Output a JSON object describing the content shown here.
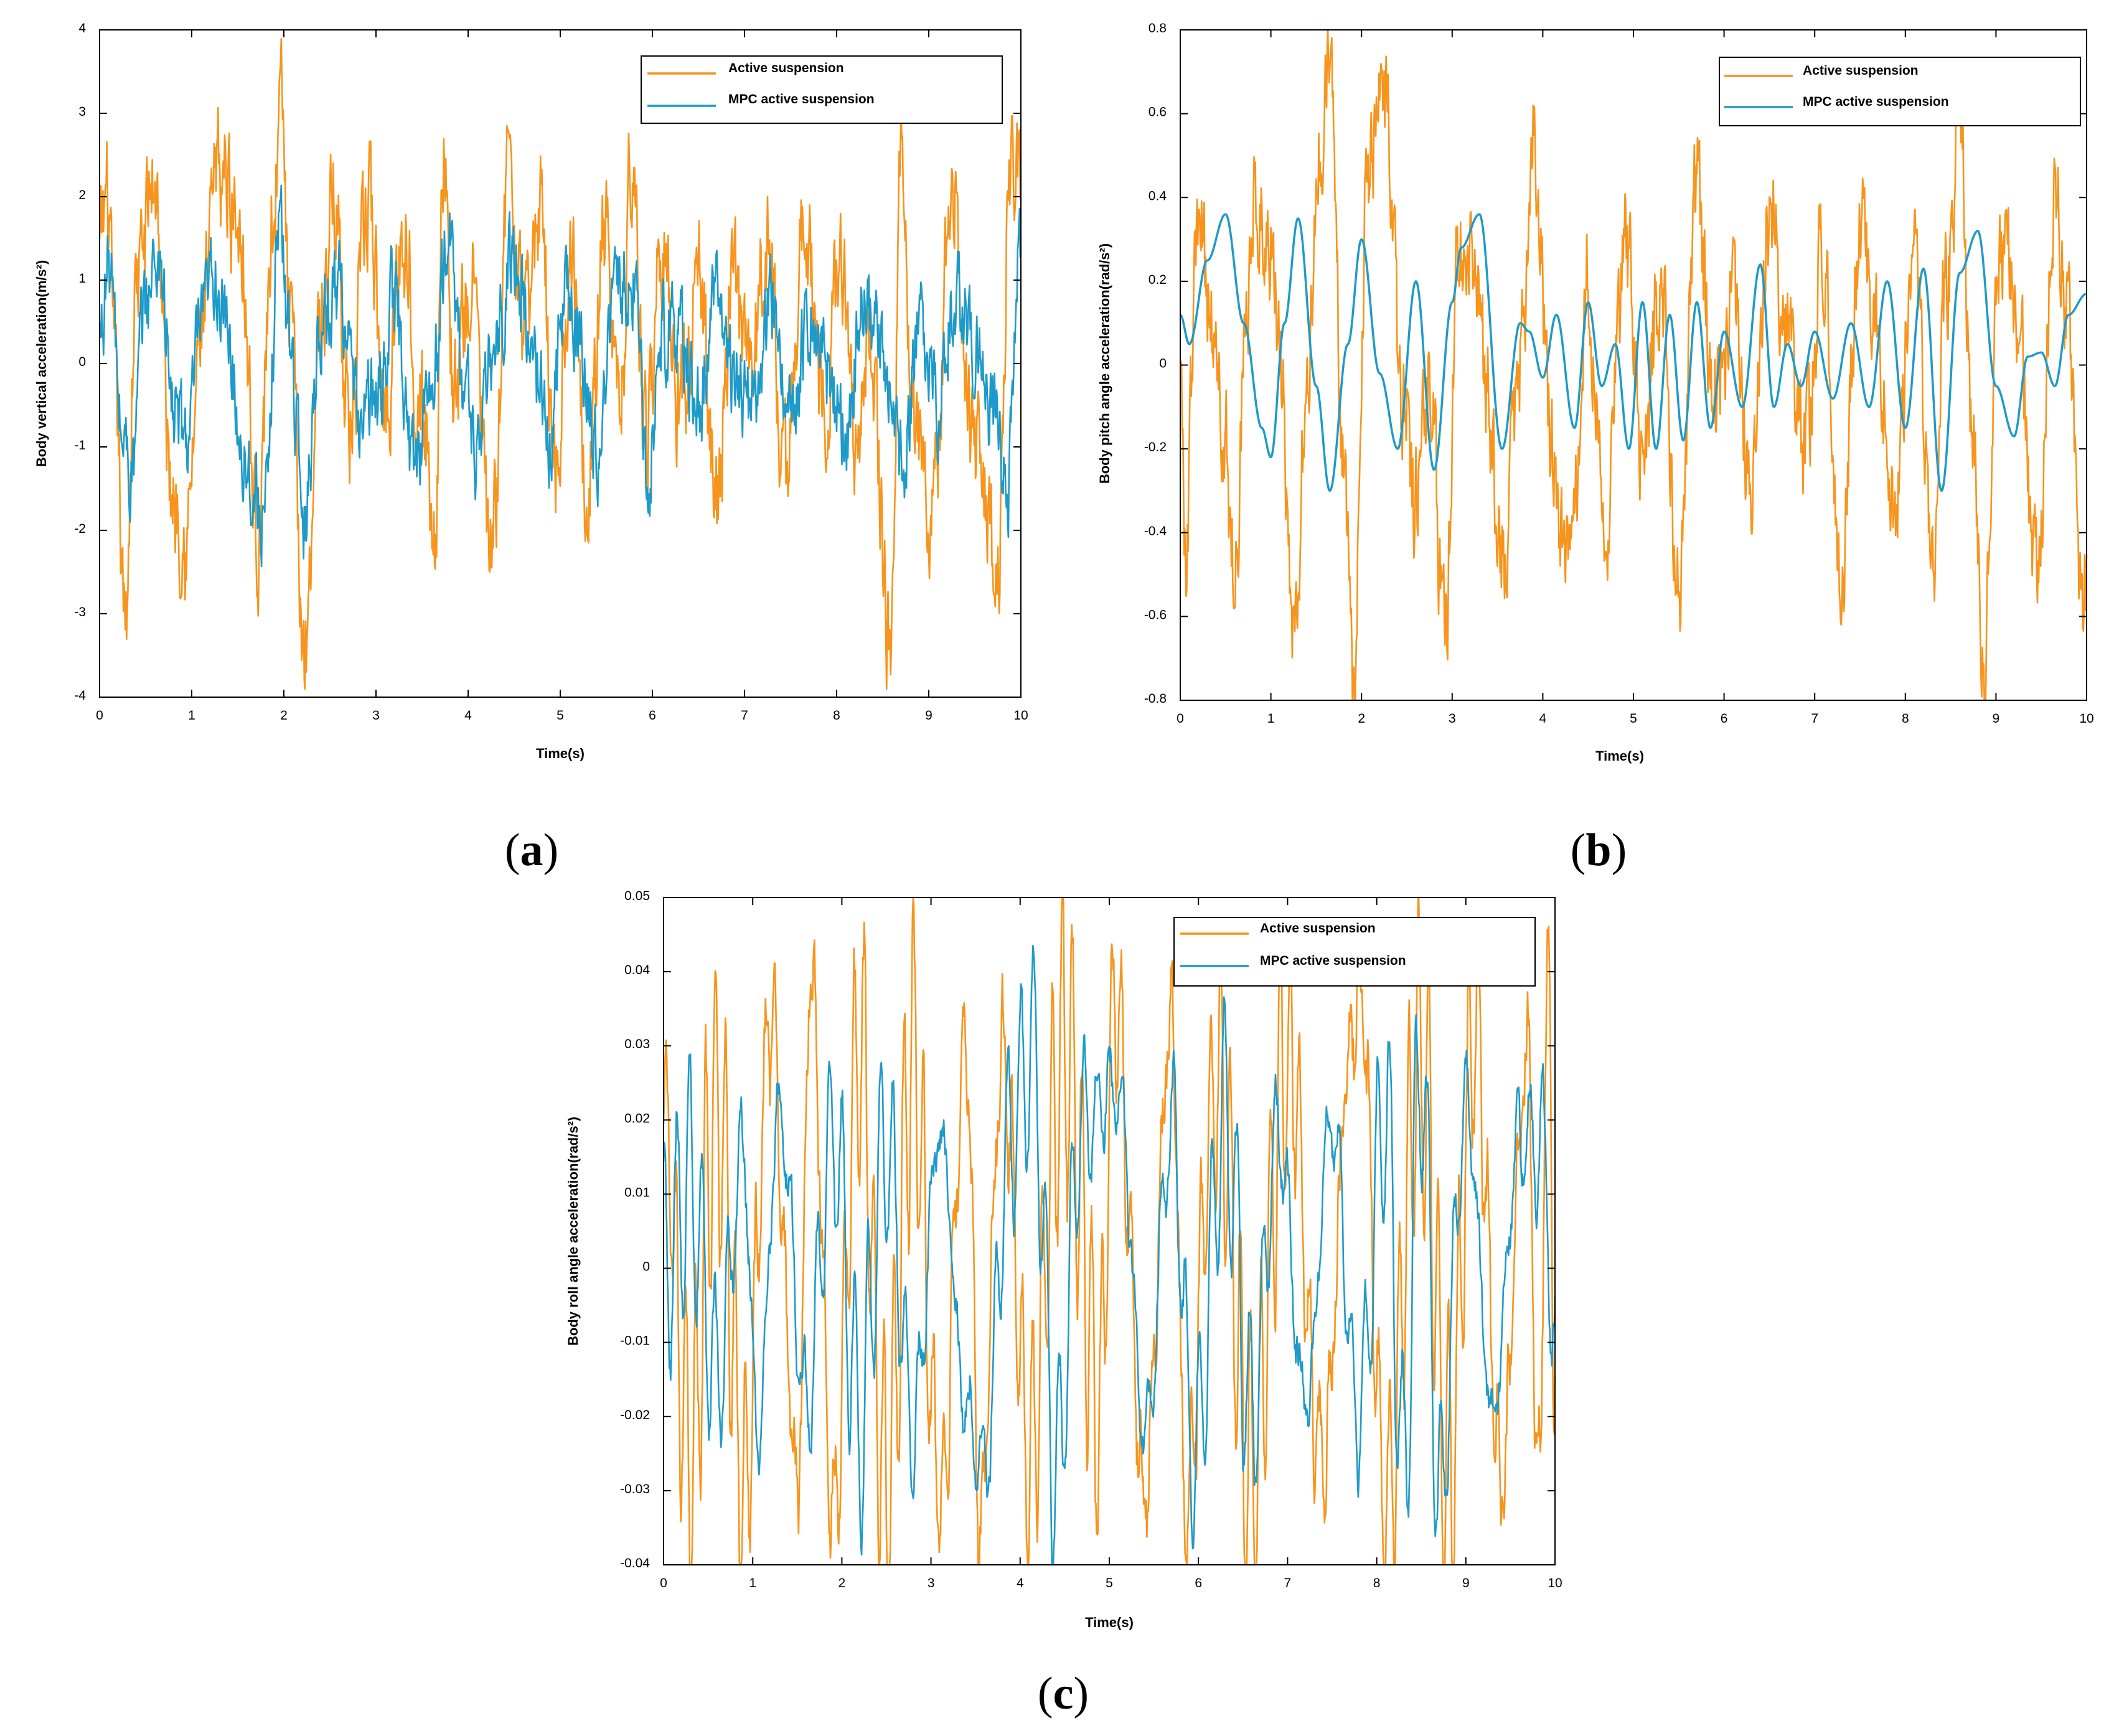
{
  "colors": {
    "active": "#F7941D",
    "mpc": "#1E9AC8",
    "axis": "#000000"
  },
  "chart_data": [
    {
      "type": "line",
      "id": "a",
      "caption_letter": "a",
      "caption_open": "(",
      "caption_close": ")",
      "xlabel": "Time(s)",
      "ylabel": "Body vertical acceleration(m/s²)",
      "xlim": [
        0,
        10
      ],
      "ylim": [
        -4,
        4
      ],
      "xticks": [
        0,
        1,
        2,
        3,
        4,
        5,
        6,
        7,
        8,
        9,
        10
      ],
      "yticks": [
        4,
        3,
        2,
        1,
        0,
        -1,
        -2,
        -3,
        -4
      ],
      "ytick_labels": [
        "4",
        "3",
        "2",
        "1",
        "0",
        "-1",
        "-2",
        "-3",
        "-4"
      ],
      "legend": [
        "Active suspension",
        "MPC active suspension"
      ],
      "legend_position": "top-right",
      "series": [
        {
          "name": "Active suspension",
          "x": [
            0,
            0.08,
            0.18,
            0.27,
            0.4,
            0.6,
            0.78,
            0.95,
            1.1,
            1.3,
            1.52,
            1.72,
            1.88,
            1.97,
            2.07,
            2.22,
            2.4,
            2.55,
            2.72,
            2.92,
            3.1,
            3.3,
            3.5,
            3.65,
            3.72,
            3.85,
            4.05,
            4.25,
            4.45,
            4.6,
            4.78,
            4.95,
            5.12,
            5.3,
            5.48,
            5.65,
            5.78,
            5.93,
            6.1,
            6.3,
            6.5,
            6.7,
            6.88,
            7.05,
            7.25,
            7.45,
            7.65,
            7.85,
            8.05,
            8.22,
            8.35,
            8.58,
            8.7,
            8.82,
            9.05,
            9.25,
            9.45,
            9.63,
            9.75,
            9.88,
            10
          ],
          "y": [
            1.3,
            2.0,
            -0.5,
            -3.2,
            1.0,
            2.2,
            -1.5,
            -2.0,
            0.4,
            2.3,
            1.8,
            -2.1,
            1.8,
            3.1,
            0.4,
            -3.4,
            0.5,
            2.0,
            -0.8,
            1.9,
            -0.6,
            1.6,
            -0.6,
            -2.0,
            2.7,
            -0.3,
            1.0,
            -2.4,
            2.4,
            0.3,
            1.9,
            -1.2,
            1.4,
            -1.3,
            1.5,
            -0.7,
            2.6,
            -1.0,
            1.5,
            -0.5,
            1.0,
            -1.6,
            1.0,
            -0.2,
            1.5,
            -1.5,
            1.9,
            -0.5,
            1.2,
            -0.8,
            0.3,
            -3.3,
            2.6,
            -0.8,
            -1.8,
            2.2,
            -0.6,
            -1.8,
            -2.7,
            2.3,
            2.0
          ],
          "noise_amplitude": 0.6
        },
        {
          "name": "MPC active suspension",
          "x": [
            0,
            0.1,
            0.25,
            0.35,
            0.5,
            0.65,
            0.8,
            0.95,
            1.1,
            1.25,
            1.4,
            1.55,
            1.7,
            1.8,
            1.95,
            2.05,
            2.22,
            2.4,
            2.6,
            2.8,
            3.0,
            3.2,
            3.4,
            3.6,
            3.8,
            3.95,
            4.1,
            4.3,
            4.5,
            4.7,
            4.9,
            5.05,
            5.2,
            5.4,
            5.6,
            5.8,
            5.95,
            6.1,
            6.3,
            6.5,
            6.7,
            6.9,
            7.1,
            7.3,
            7.5,
            7.7,
            7.9,
            8.1,
            8.3,
            8.5,
            8.7,
            8.9,
            9.1,
            9.3,
            9.5,
            9.7,
            9.85,
            10
          ],
          "y": [
            0.3,
            1.2,
            -0.9,
            -1.3,
            0.8,
            1.3,
            -0.6,
            -0.9,
            0.4,
            1.1,
            0.2,
            -1.0,
            -1.6,
            -1.9,
            1.8,
            0.5,
            -1.8,
            0.5,
            1.0,
            -0.6,
            -0.5,
            0.8,
            -1.2,
            -0.3,
            1.5,
            -0.2,
            -1.0,
            0.2,
            1.3,
            0.1,
            -0.9,
            1.1,
            0.2,
            -1.0,
            0.9,
            1.0,
            -1.4,
            0.5,
            0.3,
            -0.6,
            0.8,
            -0.2,
            -0.5,
            0.8,
            -0.6,
            0.6,
            -0.1,
            -0.8,
            0.6,
            0.2,
            -1.3,
            0.4,
            -0.5,
            0.9,
            0.2,
            -0.7,
            -1.5,
            1.5
          ],
          "noise_amplitude": 0.45
        }
      ]
    },
    {
      "type": "line",
      "id": "b",
      "caption_letter": "b",
      "caption_open": "(",
      "caption_close": ")",
      "xlabel": "Time(s)",
      "ylabel": "Body pitch angle acceleration(rad/s²)",
      "xlim": [
        0,
        10
      ],
      "ylim": [
        -0.8,
        0.8
      ],
      "xticks": [
        0,
        1,
        2,
        3,
        4,
        5,
        6,
        7,
        8,
        9,
        10
      ],
      "yticks": [
        0.8,
        0.6,
        0.4,
        0.2,
        0,
        -0.2,
        -0.4,
        -0.6,
        -0.8
      ],
      "ytick_labels": [
        "0.8",
        "0.6",
        "0.4",
        "0.2",
        "0",
        "-0.2",
        "-0.4",
        "-0.6",
        "-0.8"
      ],
      "legend": [
        "Active suspension",
        "MPC active suspension"
      ],
      "legend_position": "top-right",
      "series": [
        {
          "name": "Active suspension",
          "x": [
            0,
            0.05,
            0.2,
            0.35,
            0.5,
            0.6,
            0.72,
            0.85,
            1.0,
            1.1,
            1.25,
            1.4,
            1.52,
            1.65,
            1.8,
            1.92,
            2.05,
            2.25,
            2.45,
            2.6,
            2.75,
            2.92,
            3.05,
            3.2,
            3.38,
            3.55,
            3.75,
            3.9,
            4.1,
            4.3,
            4.5,
            4.7,
            4.9,
            5.1,
            5.3,
            5.5,
            5.7,
            5.9,
            6.1,
            6.3,
            6.5,
            6.7,
            6.9,
            7.1,
            7.3,
            7.5,
            7.7,
            7.9,
            8.1,
            8.3,
            8.45,
            8.6,
            8.75,
            8.88,
            9.05,
            9.25,
            9.45,
            9.65,
            9.8,
            9.95,
            10
          ],
          "y": [
            0.1,
            -0.45,
            0.32,
            0.1,
            -0.2,
            -0.5,
            0.1,
            0.4,
            0.3,
            0.0,
            -0.66,
            -0.1,
            0.5,
            0.7,
            -0.2,
            -0.72,
            0.4,
            0.65,
            -0.1,
            -0.3,
            0.0,
            -0.68,
            0.2,
            0.35,
            -0.05,
            -0.45,
            0.0,
            0.55,
            -0.2,
            -0.5,
            0.2,
            -0.35,
            0.3,
            -0.2,
            0.2,
            -0.55,
            0.4,
            -0.1,
            0.2,
            -0.3,
            0.4,
            0.05,
            -0.2,
            0.3,
            -0.5,
            0.3,
            0.05,
            -0.3,
            0.3,
            -0.5,
            0.2,
            0.55,
            -0.2,
            -0.68,
            0.35,
            0.1,
            -0.55,
            0.45,
            0.1,
            -0.6,
            -0.5
          ],
          "noise_amplitude": 0.12
        },
        {
          "name": "MPC active suspension",
          "x": [
            0,
            0.1,
            0.3,
            0.5,
            0.7,
            0.9,
            1.0,
            1.15,
            1.3,
            1.5,
            1.65,
            1.85,
            2.0,
            2.2,
            2.4,
            2.6,
            2.8,
            3.0,
            3.1,
            3.3,
            3.55,
            3.75,
            3.85,
            4.0,
            4.15,
            4.35,
            4.5,
            4.65,
            4.8,
            4.95,
            5.1,
            5.25,
            5.4,
            5.55,
            5.7,
            5.85,
            6.0,
            6.2,
            6.4,
            6.55,
            6.7,
            6.85,
            7.0,
            7.2,
            7.4,
            7.6,
            7.8,
            8.0,
            8.2,
            8.4,
            8.6,
            8.8,
            9.0,
            9.2,
            9.35,
            9.5,
            9.65,
            9.8,
            10
          ],
          "y": [
            0.12,
            0.05,
            0.25,
            0.36,
            0.1,
            -0.15,
            -0.22,
            0.1,
            0.35,
            -0.05,
            -0.3,
            0.05,
            0.3,
            -0.02,
            -0.2,
            0.2,
            -0.25,
            0.15,
            0.28,
            0.36,
            -0.2,
            0.1,
            0.08,
            -0.03,
            0.12,
            -0.15,
            0.15,
            -0.05,
            0.05,
            -0.2,
            0.15,
            -0.2,
            0.12,
            -0.18,
            0.15,
            -0.15,
            0.08,
            -0.1,
            0.24,
            -0.1,
            0.05,
            -0.05,
            0.08,
            -0.08,
            0.1,
            -0.1,
            0.2,
            -0.15,
            0.23,
            -0.3,
            0.22,
            0.32,
            -0.05,
            -0.17,
            0.02,
            0.03,
            -0.05,
            0.12,
            0.17
          ],
          "noise_amplitude": 0.0
        }
      ]
    },
    {
      "type": "line",
      "id": "c",
      "caption_letter": "c",
      "caption_open": "(",
      "caption_close": ")",
      "xlabel": "Time(s)",
      "ylabel": "Body roll angle acceleration(rad/s²)",
      "xlim": [
        0,
        10
      ],
      "ylim": [
        -0.04,
        0.05
      ],
      "xticks": [
        0,
        1,
        2,
        3,
        4,
        5,
        6,
        7,
        8,
        9,
        10
      ],
      "yticks": [
        0.05,
        0.04,
        0.03,
        0.02,
        0.01,
        0,
        -0.01,
        -0.02,
        -0.03,
        -0.04
      ],
      "ytick_labels": [
        "0.05",
        "0.04",
        "0.03",
        "0.02",
        "0.01",
        "0",
        "-0.01",
        "-0.02",
        "-0.03",
        "-0.04"
      ],
      "legend": [
        "Active suspension",
        "MPC active suspension"
      ],
      "legend_position": "top-right",
      "series": [
        {
          "name": "Active suspension",
          "x": [
            0,
            0.3,
            0.6,
            0.9,
            1.2,
            1.5,
            1.65,
            1.9,
            2.2,
            2.5,
            2.8,
            3.1,
            3.4,
            3.55,
            3.8,
            4.1,
            4.5,
            4.9,
            5.05,
            5.4,
            5.7,
            5.85,
            6.2,
            6.6,
            7.0,
            7.4,
            7.7,
            7.8,
            8.1,
            8.5,
            8.8,
            9.1,
            9.4,
            9.7,
            9.8,
            9.93,
            10
          ],
          "y": [
            0.02,
            -0.025,
            0.025,
            -0.03,
            0.032,
            -0.03,
            0.042,
            -0.033,
            0.03,
            -0.03,
            0.028,
            -0.03,
            0.027,
            -0.035,
            0.03,
            -0.025,
            0.03,
            -0.02,
            0.037,
            -0.03,
            0.035,
            -0.031,
            0.027,
            -0.028,
            0.03,
            -0.025,
            0.028,
            0.039,
            -0.032,
            0.03,
            -0.028,
            0.033,
            -0.028,
            0.03,
            -0.032,
            0.039,
            -0.015
          ],
          "oscillation": {
            "amplitude": 0.022,
            "frequency_hz": 9
          },
          "noise_amplitude": 0.004
        },
        {
          "name": "MPC active suspension",
          "x": [
            0,
            0.3,
            0.6,
            0.9,
            1.05,
            1.3,
            1.6,
            1.9,
            2.2,
            2.5,
            2.8,
            3.1,
            3.4,
            3.6,
            3.9,
            4.15,
            4.4,
            4.7,
            5.1,
            5.4,
            5.7,
            5.95,
            6.3,
            6.6,
            6.9,
            7.2,
            7.5,
            7.8,
            8.1,
            8.3,
            8.5,
            8.7,
            9.0,
            9.3,
            9.6,
            9.9,
            10
          ],
          "y": [
            0.0,
            0.012,
            -0.015,
            0.016,
            -0.024,
            0.022,
            -0.018,
            0.018,
            -0.02,
            0.017,
            -0.021,
            0.018,
            -0.019,
            -0.026,
            0.02,
            0.028,
            -0.027,
            0.02,
            0.024,
            -0.022,
            0.02,
            -0.026,
            0.02,
            -0.02,
            0.018,
            -0.018,
            0.02,
            -0.02,
            0.022,
            -0.028,
            0.028,
            -0.031,
            0.022,
            -0.02,
            0.018,
            0.015,
            -0.017
          ],
          "oscillation": {
            "amplitude": 0.016,
            "frequency_hz": 7
          },
          "noise_amplitude": 0.002
        }
      ]
    }
  ]
}
